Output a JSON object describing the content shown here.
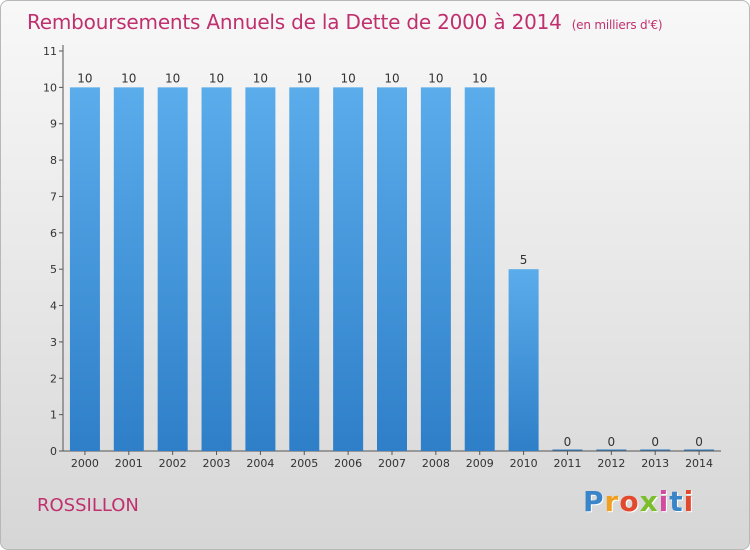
{
  "title": "Remboursements Annuels de la Dette de 2000 à 2014",
  "unit": "(en milliers d'€)",
  "commune": "ROSSILLON",
  "logo": "Proxiti",
  "colors": {
    "title": "#c0306e",
    "bar_top": "#5aaceb",
    "bar_bottom": "#2e7fc8"
  },
  "chart_data": {
    "type": "bar",
    "categories": [
      "2000",
      "2001",
      "2002",
      "2003",
      "2004",
      "2005",
      "2006",
      "2007",
      "2008",
      "2009",
      "2010",
      "2011",
      "2012",
      "2013",
      "2014"
    ],
    "values": [
      10,
      10,
      10,
      10,
      10,
      10,
      10,
      10,
      10,
      10,
      5,
      0,
      0,
      0,
      0
    ],
    "data_labels": [
      "10",
      "10",
      "10",
      "10",
      "10",
      "10",
      "10",
      "10",
      "10",
      "10",
      "5",
      "0",
      "0",
      "0",
      "0"
    ],
    "ylim": [
      0,
      11
    ],
    "yticks": [
      "0",
      "1",
      "2",
      "3",
      "4",
      "5",
      "6",
      "7",
      "8",
      "9",
      "10",
      "11"
    ],
    "grid": false,
    "xlabel": "",
    "ylabel": ""
  }
}
